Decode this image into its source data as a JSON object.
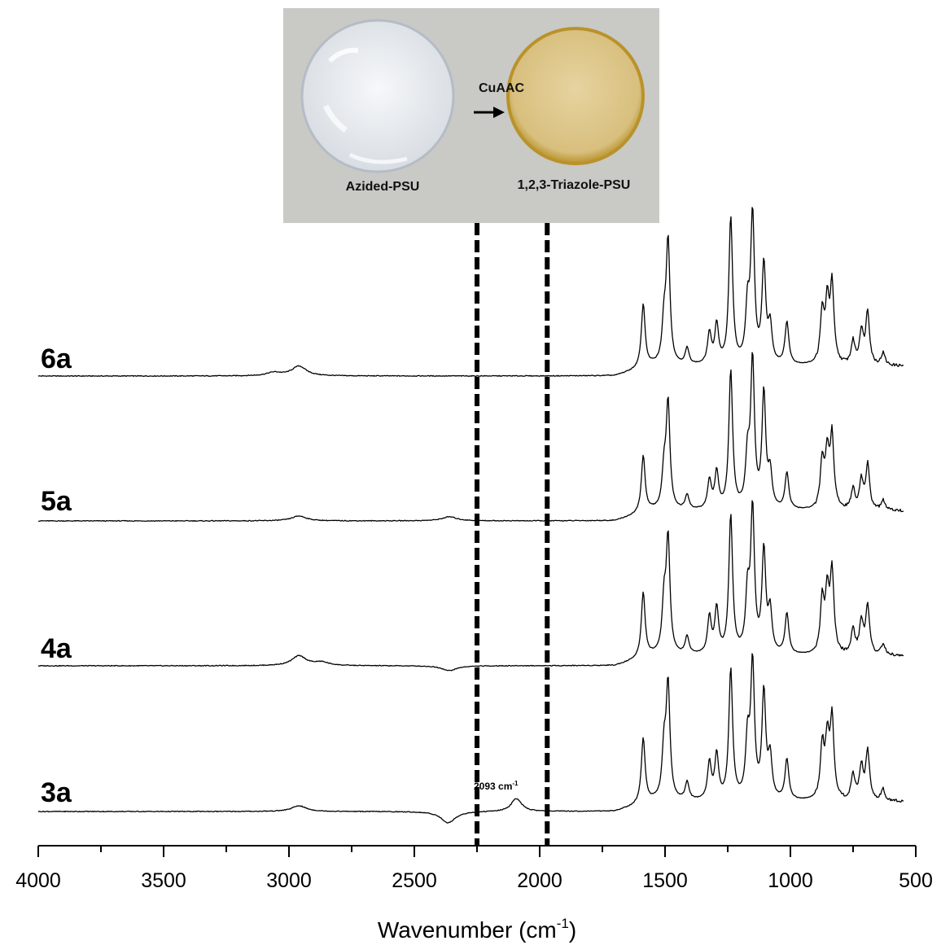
{
  "chart_data": {
    "type": "line",
    "title": "",
    "xlabel": "Wavenumber (cm",
    "xlabel_sup": "-1",
    "xlabel_close": ")",
    "ylabel": "",
    "xlim": [
      4000,
      500
    ],
    "x_reversed": true,
    "xticks": [
      4000,
      3500,
      3000,
      2500,
      2000,
      1500,
      1000,
      500
    ],
    "xtick_labels": [
      "4000",
      "3500",
      "3000",
      "2500",
      "2000",
      "1500",
      "1000",
      "500"
    ],
    "grid": false,
    "legend": "none",
    "vertical_markers": [
      2250,
      1970
    ],
    "annotation": {
      "text": "2093 cm",
      "sup": "-1",
      "x": 2093
    },
    "series": [
      {
        "name": "6a",
        "peaks": [
          {
            "x": 1587,
            "h": 78
          },
          {
            "x": 1504,
            "h": 48
          },
          {
            "x": 1488,
            "h": 150
          },
          {
            "x": 1412,
            "h": 20
          },
          {
            "x": 1323,
            "h": 38
          },
          {
            "x": 1294,
            "h": 48
          },
          {
            "x": 1238,
            "h": 180
          },
          {
            "x": 1171,
            "h": 65
          },
          {
            "x": 1151,
            "h": 180
          },
          {
            "x": 1106,
            "h": 120
          },
          {
            "x": 1081,
            "h": 45
          },
          {
            "x": 1014,
            "h": 52
          },
          {
            "x": 873,
            "h": 62
          },
          {
            "x": 853,
            "h": 70
          },
          {
            "x": 834,
            "h": 95
          },
          {
            "x": 750,
            "h": 28
          },
          {
            "x": 717,
            "h": 40
          },
          {
            "x": 692,
            "h": 65
          },
          {
            "x": 630,
            "h": 15
          },
          {
            "x": 2960,
            "h": 12
          },
          {
            "x": 3060,
            "h": 4
          }
        ]
      },
      {
        "name": "5a",
        "peaks": [
          {
            "x": 1587,
            "h": 70
          },
          {
            "x": 1504,
            "h": 45
          },
          {
            "x": 1488,
            "h": 130
          },
          {
            "x": 1412,
            "h": 18
          },
          {
            "x": 1323,
            "h": 35
          },
          {
            "x": 1294,
            "h": 45
          },
          {
            "x": 1238,
            "h": 170
          },
          {
            "x": 1171,
            "h": 60
          },
          {
            "x": 1151,
            "h": 180
          },
          {
            "x": 1106,
            "h": 140
          },
          {
            "x": 1081,
            "h": 42
          },
          {
            "x": 1014,
            "h": 45
          },
          {
            "x": 873,
            "h": 58
          },
          {
            "x": 853,
            "h": 65
          },
          {
            "x": 834,
            "h": 88
          },
          {
            "x": 750,
            "h": 25
          },
          {
            "x": 717,
            "h": 35
          },
          {
            "x": 692,
            "h": 55
          },
          {
            "x": 630,
            "h": 12
          },
          {
            "x": 2960,
            "h": 6
          },
          {
            "x": 2360,
            "h": 5
          }
        ]
      },
      {
        "name": "4a",
        "peaks": [
          {
            "x": 1587,
            "h": 80
          },
          {
            "x": 1504,
            "h": 60
          },
          {
            "x": 1488,
            "h": 140
          },
          {
            "x": 1412,
            "h": 22
          },
          {
            "x": 1323,
            "h": 45
          },
          {
            "x": 1294,
            "h": 55
          },
          {
            "x": 1238,
            "h": 170
          },
          {
            "x": 1171,
            "h": 70
          },
          {
            "x": 1151,
            "h": 175
          },
          {
            "x": 1106,
            "h": 125
          },
          {
            "x": 1081,
            "h": 50
          },
          {
            "x": 1014,
            "h": 50
          },
          {
            "x": 873,
            "h": 65
          },
          {
            "x": 853,
            "h": 70
          },
          {
            "x": 834,
            "h": 98
          },
          {
            "x": 750,
            "h": 30
          },
          {
            "x": 717,
            "h": 40
          },
          {
            "x": 692,
            "h": 60
          },
          {
            "x": 630,
            "h": 14
          },
          {
            "x": 2960,
            "h": 12
          },
          {
            "x": 2870,
            "h": 4
          },
          {
            "x": 2360,
            "h": -6
          }
        ]
      },
      {
        "name": "3a",
        "peaks": [
          {
            "x": 1587,
            "h": 80
          },
          {
            "x": 1504,
            "h": 60
          },
          {
            "x": 1488,
            "h": 140
          },
          {
            "x": 1412,
            "h": 22
          },
          {
            "x": 1323,
            "h": 45
          },
          {
            "x": 1294,
            "h": 55
          },
          {
            "x": 1238,
            "h": 160
          },
          {
            "x": 1171,
            "h": 70
          },
          {
            "x": 1151,
            "h": 165
          },
          {
            "x": 1106,
            "h": 130
          },
          {
            "x": 1081,
            "h": 50
          },
          {
            "x": 1014,
            "h": 50
          },
          {
            "x": 873,
            "h": 65
          },
          {
            "x": 853,
            "h": 70
          },
          {
            "x": 834,
            "h": 98
          },
          {
            "x": 750,
            "h": 30
          },
          {
            "x": 717,
            "h": 40
          },
          {
            "x": 692,
            "h": 60
          },
          {
            "x": 630,
            "h": 14
          },
          {
            "x": 2960,
            "h": 7
          },
          {
            "x": 2365,
            "h": -14
          },
          {
            "x": 2093,
            "h": 16
          }
        ]
      }
    ]
  },
  "inset": {
    "left_label": "Azided-PSU",
    "right_label": "1,2,3-Triazole-PSU",
    "arrow_label": "CuAAC",
    "colors": {
      "background": "#c9c9c6",
      "left_disc": "#eceff3",
      "right_disc": "#dcc68f",
      "right_rim": "#b9922a"
    }
  }
}
